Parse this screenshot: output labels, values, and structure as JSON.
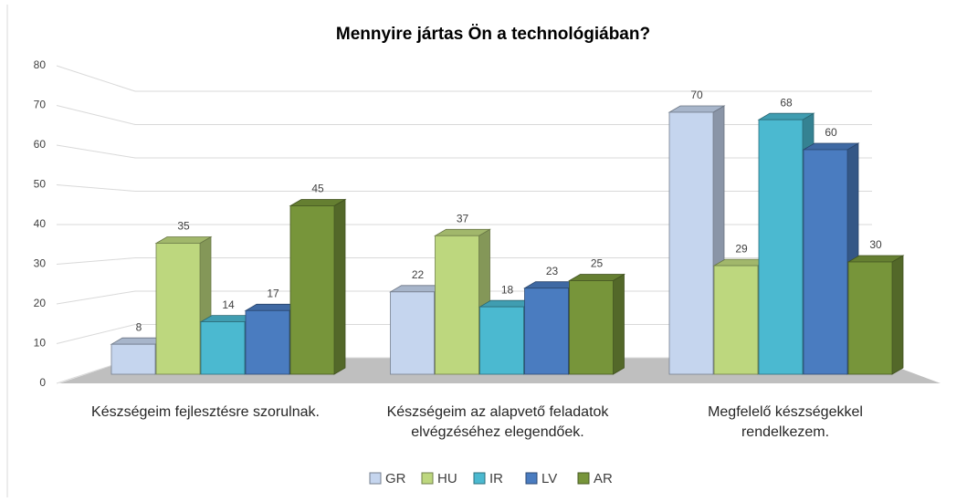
{
  "chart_data": {
    "type": "bar3d",
    "title": "Mennyire jártas Ön a technológiában?",
    "categories": [
      "Készségeim fejlesztésre szorulnak.",
      "Készségeim az alapvető feladatok elvégzéséhez elegendőek.",
      "Megfelelő készségekkel rendelkezem."
    ],
    "series": [
      {
        "name": "GR",
        "color": "#c5d5ee",
        "values": [
          8,
          22,
          70
        ]
      },
      {
        "name": "HU",
        "color": "#bdd77e",
        "values": [
          35,
          37,
          29
        ]
      },
      {
        "name": "IR",
        "color": "#4bb9d0",
        "values": [
          14,
          18,
          68
        ]
      },
      {
        "name": "LV",
        "color": "#4a7cc0",
        "values": [
          17,
          23,
          60
        ]
      },
      {
        "name": "AR",
        "color": "#77953a",
        "values": [
          45,
          25,
          30
        ]
      }
    ],
    "ylim": [
      0,
      80
    ],
    "yticks": [
      0,
      10,
      20,
      30,
      40,
      50,
      60,
      70,
      80
    ],
    "grid": true,
    "legend": "bottom"
  }
}
